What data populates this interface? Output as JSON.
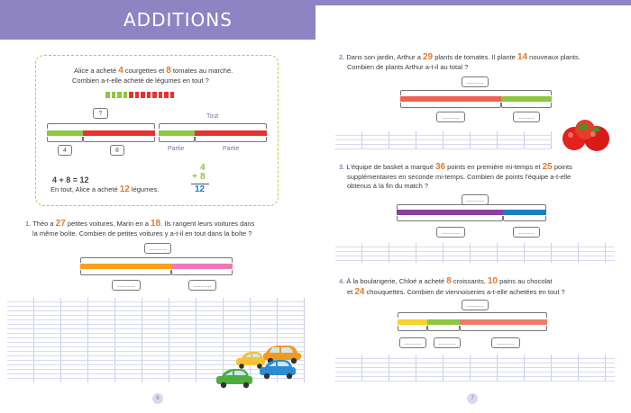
{
  "header": {
    "title": "ADDITIONS"
  },
  "example": {
    "line1_a": "Alice a acheté ",
    "n1": "4",
    "line1_b": " courgettes et ",
    "n2": "8",
    "line1_c": " tomates au marché.",
    "line2": "Combien a-t-elle acheté de légumes en tout ?",
    "question_box": "?",
    "part_box_1": "4",
    "part_box_2": "8",
    "tout_label": "Tout",
    "partie_label_1": "Partie",
    "partie_label_2": "Partie",
    "equation": "4 + 8 = 12",
    "answer_a": "En tout, Alice a acheté ",
    "answer_num": "12",
    "answer_b": " légumes.",
    "col_top": "4",
    "col_plus": "+",
    "col_mid": "8",
    "col_result": "12"
  },
  "q1": {
    "number": "1.",
    "a": "Théo a ",
    "n1": "27",
    "b": " petites voitures, Marin en a ",
    "n2": "18",
    "c": ". Ils rangent leurs voitures dans",
    "line2": "la même boîte. Combien de petites voitures y a-t-il en tout dans la boîte ?",
    "blank": "..........",
    "blank_left": "..........",
    "blank_right": ".........."
  },
  "q2": {
    "number": "2.",
    "a": "Dans son jardin, Arthur a ",
    "n1": "29",
    "b": " plants de tomates. Il plante ",
    "n2": "14",
    "c": " nouveaux plants.",
    "line2": "Combien de plants Arthur a-t-il au total ?",
    "blank": "..........",
    "blank_left": "..........",
    "blank_right": "........."
  },
  "q3": {
    "number": "3.",
    "a": "L'équipe de basket a marqué ",
    "n1": "36",
    "b": " points en première mi-temps et ",
    "n2": "25",
    "c": " points",
    "line2": "supplémentaires en seconde mi-temps. Combien de points l'équipe a-t-elle",
    "line3": "obtenus à la fin du match ?",
    "blank": "..........",
    "blank_left": "..........",
    "blank_right": "........."
  },
  "q4": {
    "number": "4.",
    "a": "À la boulangerie, Chloé a acheté ",
    "n1": "8",
    "b": " croissants, ",
    "n2": "10",
    "c": " pains au chocolat",
    "d": "et ",
    "n3": "24",
    "e": " chouquettes. Combien de viennoiseries a-t-elle achetées en tout ?",
    "blank": "..........",
    "blank_1": "..........",
    "blank_2": "..........",
    "blank_3": ".........."
  },
  "pages": {
    "left": "6",
    "right": "7"
  },
  "colors": {
    "header": "#8e84c4",
    "green": "#8dc63f",
    "red": "#e8322f",
    "orange": "#f7a21b",
    "pink": "#ee79b6",
    "salmon": "#f06150",
    "purple": "#8a3ea0",
    "blue": "#1f7fc3",
    "yellow": "#f7d32c",
    "peach": "#ee7d68",
    "number": "#e27a2e"
  },
  "icons": [
    "toy-cars-illustration",
    "tomatoes-illustration"
  ]
}
